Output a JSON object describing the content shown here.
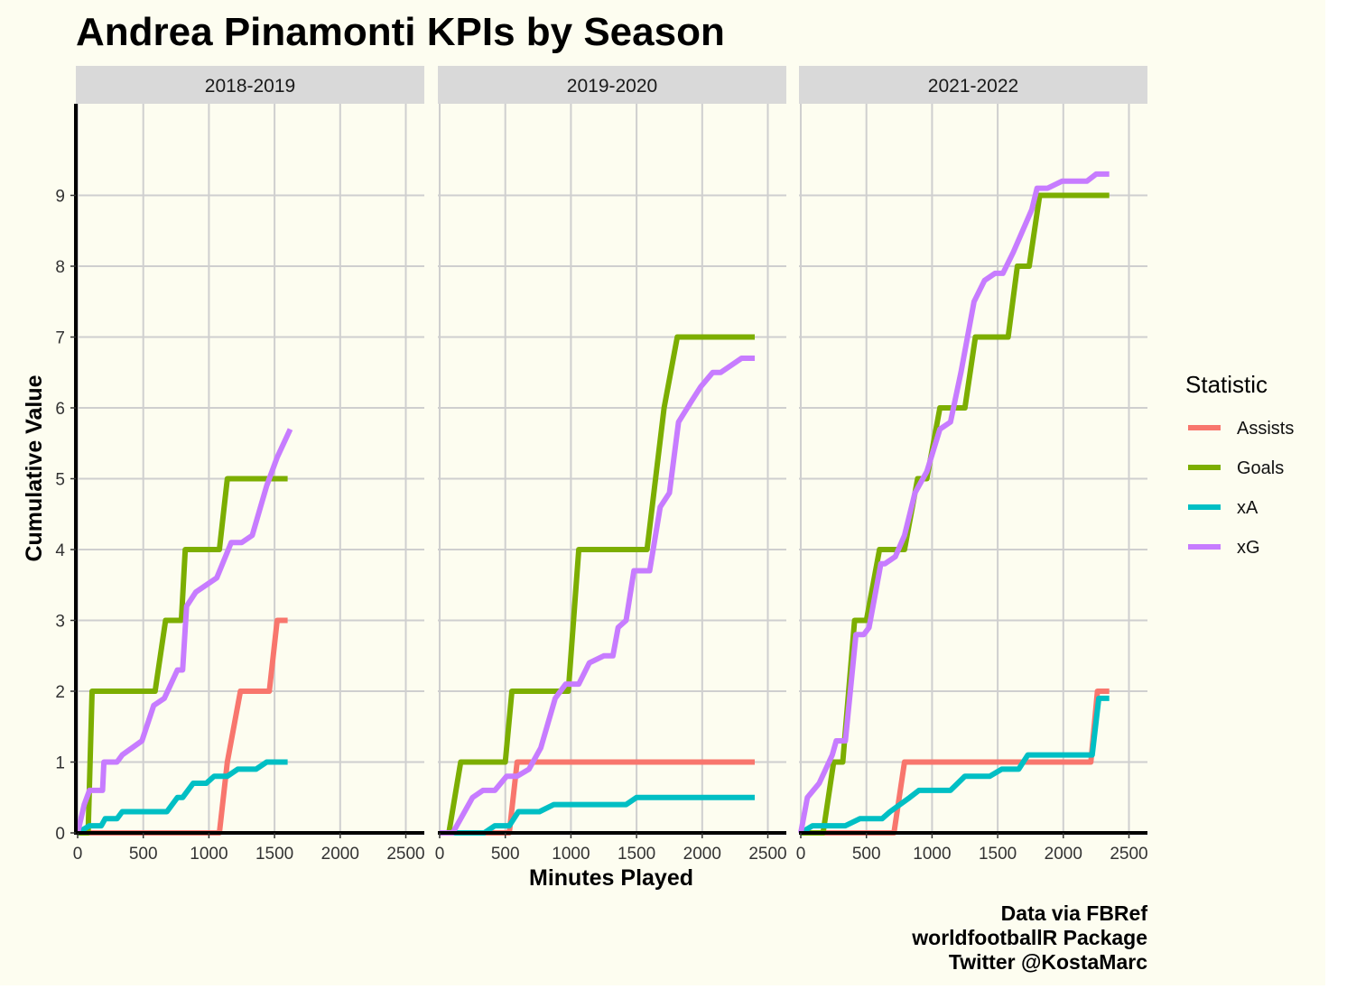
{
  "chart_data": {
    "type": "line",
    "title": "Andrea Pinamonti KPIs by Season",
    "xlabel": "Minutes Played",
    "ylabel": "Cumulative Value",
    "xlim": [
      0,
      2650
    ],
    "ylim": [
      0,
      10.3
    ],
    "x_ticks": [
      0,
      500,
      1000,
      1500,
      2000,
      2500
    ],
    "y_ticks": [
      0,
      1,
      2,
      3,
      4,
      5,
      6,
      7,
      8,
      9
    ],
    "grid": true,
    "legend": {
      "title": "Statistic",
      "position": "right",
      "entries": [
        {
          "label": "Assists",
          "color": "#f8766d"
        },
        {
          "label": "Goals",
          "color": "#7cae00"
        },
        {
          "label": "xA",
          "color": "#00bfc4"
        },
        {
          "label": "xG",
          "color": "#c77cff"
        }
      ]
    },
    "caption": [
      "Data via FBRef",
      "worldfootballR Package",
      "Twitter @KostaMarc"
    ],
    "panels": [
      {
        "label": "2018-2019",
        "series": [
          {
            "name": "Assists",
            "color": "#f8766d",
            "points": [
              [
                0,
                0
              ],
              [
                1080,
                0
              ],
              [
                1140,
                1
              ],
              [
                1240,
                2
              ],
              [
                1460,
                2
              ],
              [
                1520,
                3
              ],
              [
                1600,
                3
              ]
            ]
          },
          {
            "name": "Goals",
            "color": "#7cae00",
            "points": [
              [
                0,
                0
              ],
              [
                80,
                0
              ],
              [
                110,
                2
              ],
              [
                590,
                2
              ],
              [
                670,
                3
              ],
              [
                790,
                3
              ],
              [
                820,
                4
              ],
              [
                1080,
                4
              ],
              [
                1140,
                5
              ],
              [
                1600,
                5
              ]
            ]
          },
          {
            "name": "xA",
            "color": "#00bfc4",
            "points": [
              [
                0,
                0
              ],
              [
                90,
                0.1
              ],
              [
                180,
                0.1
              ],
              [
                210,
                0.2
              ],
              [
                300,
                0.2
              ],
              [
                340,
                0.3
              ],
              [
                680,
                0.3
              ],
              [
                760,
                0.5
              ],
              [
                800,
                0.5
              ],
              [
                880,
                0.7
              ],
              [
                980,
                0.7
              ],
              [
                1040,
                0.8
              ],
              [
                1140,
                0.8
              ],
              [
                1220,
                0.9
              ],
              [
                1360,
                0.9
              ],
              [
                1440,
                1
              ],
              [
                1600,
                1
              ]
            ]
          },
          {
            "name": "xG",
            "color": "#c77cff",
            "points": [
              [
                0,
                0
              ],
              [
                50,
                0.4
              ],
              [
                90,
                0.6
              ],
              [
                190,
                0.6
              ],
              [
                200,
                1
              ],
              [
                300,
                1
              ],
              [
                340,
                1.1
              ],
              [
                490,
                1.3
              ],
              [
                580,
                1.8
              ],
              [
                660,
                1.9
              ],
              [
                760,
                2.3
              ],
              [
                800,
                2.3
              ],
              [
                830,
                3.2
              ],
              [
                900,
                3.4
              ],
              [
                1060,
                3.6
              ],
              [
                1170,
                4.1
              ],
              [
                1250,
                4.1
              ],
              [
                1330,
                4.2
              ],
              [
                1440,
                4.9
              ],
              [
                1520,
                5.3
              ],
              [
                1620,
                5.7
              ]
            ]
          }
        ]
      },
      {
        "label": "2019-2020",
        "series": [
          {
            "name": "Assists",
            "color": "#f8766d",
            "points": [
              [
                0,
                0
              ],
              [
                530,
                0
              ],
              [
                590,
                1
              ],
              [
                2400,
                1
              ]
            ]
          },
          {
            "name": "Goals",
            "color": "#7cae00",
            "points": [
              [
                0,
                0
              ],
              [
                70,
                0
              ],
              [
                160,
                1
              ],
              [
                500,
                1
              ],
              [
                550,
                2
              ],
              [
                980,
                2
              ],
              [
                1060,
                4
              ],
              [
                1580,
                4
              ],
              [
                1710,
                6
              ],
              [
                1810,
                7
              ],
              [
                2400,
                7
              ]
            ]
          },
          {
            "name": "xA",
            "color": "#00bfc4",
            "points": [
              [
                0,
                0
              ],
              [
                340,
                0
              ],
              [
                420,
                0.1
              ],
              [
                530,
                0.1
              ],
              [
                600,
                0.3
              ],
              [
                760,
                0.3
              ],
              [
                870,
                0.4
              ],
              [
                1420,
                0.4
              ],
              [
                1500,
                0.5
              ],
              [
                2400,
                0.5
              ]
            ]
          },
          {
            "name": "xG",
            "color": "#c77cff",
            "points": [
              [
                0,
                0
              ],
              [
                100,
                0
              ],
              [
                160,
                0.2
              ],
              [
                250,
                0.5
              ],
              [
                330,
                0.6
              ],
              [
                420,
                0.6
              ],
              [
                510,
                0.8
              ],
              [
                590,
                0.8
              ],
              [
                680,
                0.9
              ],
              [
                770,
                1.2
              ],
              [
                880,
                1.9
              ],
              [
                960,
                2.1
              ],
              [
                1060,
                2.1
              ],
              [
                1140,
                2.4
              ],
              [
                1250,
                2.5
              ],
              [
                1320,
                2.5
              ],
              [
                1360,
                2.9
              ],
              [
                1420,
                3
              ],
              [
                1480,
                3.7
              ],
              [
                1600,
                3.7
              ],
              [
                1680,
                4.6
              ],
              [
                1750,
                4.8
              ],
              [
                1820,
                5.8
              ],
              [
                1920,
                6.1
              ],
              [
                1990,
                6.3
              ],
              [
                2080,
                6.5
              ],
              [
                2140,
                6.5
              ],
              [
                2300,
                6.7
              ],
              [
                2400,
                6.7
              ]
            ]
          }
        ]
      },
      {
        "label": "2021-2022",
        "series": [
          {
            "name": "Assists",
            "color": "#f8766d",
            "points": [
              [
                0,
                0
              ],
              [
                710,
                0
              ],
              [
                790,
                1
              ],
              [
                2210,
                1
              ],
              [
                2260,
                2
              ],
              [
                2350,
                2
              ]
            ]
          },
          {
            "name": "Goals",
            "color": "#7cae00",
            "points": [
              [
                0,
                0
              ],
              [
                170,
                0
              ],
              [
                250,
                1
              ],
              [
                320,
                1
              ],
              [
                410,
                3
              ],
              [
                500,
                3
              ],
              [
                600,
                4
              ],
              [
                790,
                4
              ],
              [
                890,
                5
              ],
              [
                960,
                5
              ],
              [
                1060,
                6
              ],
              [
                1250,
                6
              ],
              [
                1330,
                7
              ],
              [
                1580,
                7
              ],
              [
                1650,
                8
              ],
              [
                1740,
                8
              ],
              [
                1820,
                9
              ],
              [
                2350,
                9
              ]
            ]
          },
          {
            "name": "xA",
            "color": "#00bfc4",
            "points": [
              [
                0,
                0
              ],
              [
                90,
                0.1
              ],
              [
                340,
                0.1
              ],
              [
                450,
                0.2
              ],
              [
                620,
                0.2
              ],
              [
                680,
                0.3
              ],
              [
                830,
                0.5
              ],
              [
                900,
                0.6
              ],
              [
                1140,
                0.6
              ],
              [
                1250,
                0.8
              ],
              [
                1440,
                0.8
              ],
              [
                1530,
                0.9
              ],
              [
                1660,
                0.9
              ],
              [
                1730,
                1.1
              ],
              [
                2220,
                1.1
              ],
              [
                2270,
                1.9
              ],
              [
                2350,
                1.9
              ]
            ]
          },
          {
            "name": "xG",
            "color": "#c77cff",
            "points": [
              [
                0,
                0
              ],
              [
                50,
                0.5
              ],
              [
                140,
                0.7
              ],
              [
                240,
                1.1
              ],
              [
                270,
                1.3
              ],
              [
                340,
                1.3
              ],
              [
                420,
                2.8
              ],
              [
                480,
                2.8
              ],
              [
                520,
                2.9
              ],
              [
                610,
                3.8
              ],
              [
                640,
                3.8
              ],
              [
                720,
                3.9
              ],
              [
                790,
                4.2
              ],
              [
                870,
                4.8
              ],
              [
                960,
                5.1
              ],
              [
                1060,
                5.7
              ],
              [
                1140,
                5.8
              ],
              [
                1220,
                6.5
              ],
              [
                1320,
                7.5
              ],
              [
                1400,
                7.8
              ],
              [
                1480,
                7.9
              ],
              [
                1540,
                7.9
              ],
              [
                1620,
                8.2
              ],
              [
                1760,
                8.8
              ],
              [
                1800,
                9.1
              ],
              [
                1880,
                9.1
              ],
              [
                1990,
                9.2
              ],
              [
                2180,
                9.2
              ],
              [
                2250,
                9.3
              ],
              [
                2350,
                9.3
              ]
            ]
          }
        ]
      }
    ]
  }
}
